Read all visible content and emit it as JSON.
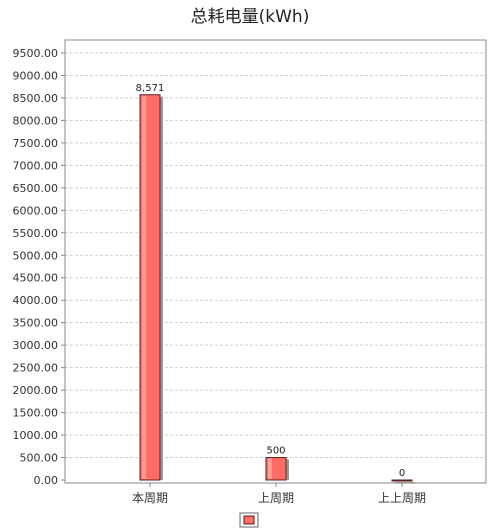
{
  "chart_data": {
    "type": "bar",
    "title": "总耗电量(kWh)",
    "xlabel": "",
    "ylabel": "",
    "categories": [
      "本周期",
      "上周期",
      "上上周期"
    ],
    "values": [
      8571,
      500,
      0
    ],
    "data_labels": [
      "8,571",
      "500",
      "0"
    ],
    "ylim": [
      0,
      9500
    ],
    "ytick_step": 500,
    "ytick_format": "0.00",
    "grid": true,
    "legend": {
      "placement": "bottom-center",
      "entries": [
        ""
      ]
    },
    "colors": {
      "bar_fill": "#ff6c66",
      "bar_highlight": "#ff9a95",
      "bar_border": "#5a2020",
      "bar_shadow": "#9a9a9a",
      "grid": "#cfcfcf",
      "axis": "#888888"
    }
  }
}
